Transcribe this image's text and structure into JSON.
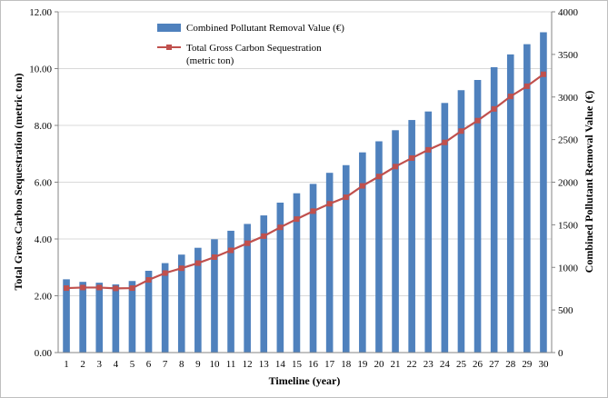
{
  "chart_data": {
    "type": "bar+line",
    "categories": [
      "1",
      "2",
      "3",
      "4",
      "5",
      "6",
      "7",
      "8",
      "9",
      "10",
      "11",
      "12",
      "13",
      "14",
      "15",
      "16",
      "17",
      "18",
      "19",
      "20",
      "21",
      "22",
      "23",
      "24",
      "25",
      "26",
      "27",
      "28",
      "29",
      "30"
    ],
    "xlabel": "Timeline (year)",
    "y_left_label": "Total Gross Carbon Sequestration  (metric ton)",
    "y_right_label": "Combined Pollutant Removal Value (€)",
    "y_left_lim": [
      0,
      12
    ],
    "y_left_ticks": [
      "0.00",
      "2.00",
      "4.00",
      "6.00",
      "8.00",
      "10.00",
      "12.00"
    ],
    "y_right_lim": [
      0,
      4000
    ],
    "y_right_ticks": [
      "0",
      "500",
      "1000",
      "1500",
      "2000",
      "2500",
      "3000",
      "3500",
      "4000"
    ],
    "gridlines": true,
    "legend_position": "top-left",
    "series": [
      {
        "name": "Combined Pollutant Removal Value (€)",
        "type": "bar",
        "axis": "right",
        "color": "#4f81bd",
        "values": [
          860,
          830,
          820,
          800,
          840,
          960,
          1050,
          1150,
          1230,
          1330,
          1430,
          1510,
          1610,
          1760,
          1870,
          1980,
          2110,
          2200,
          2350,
          2480,
          2610,
          2730,
          2830,
          2930,
          3080,
          3200,
          3350,
          3500,
          3620,
          3760
        ]
      },
      {
        "name_lines": [
          "Total Gross Carbon Sequestration",
          "(metric ton)"
        ],
        "type": "line",
        "axis": "left",
        "color": "#c0504d",
        "values": [
          2.27,
          2.29,
          2.29,
          2.26,
          2.27,
          2.56,
          2.8,
          2.97,
          3.15,
          3.36,
          3.6,
          3.85,
          4.1,
          4.41,
          4.7,
          4.98,
          5.24,
          5.47,
          5.87,
          6.2,
          6.55,
          6.85,
          7.14,
          7.4,
          7.8,
          8.17,
          8.58,
          9.02,
          9.38,
          9.8
        ]
      }
    ]
  }
}
